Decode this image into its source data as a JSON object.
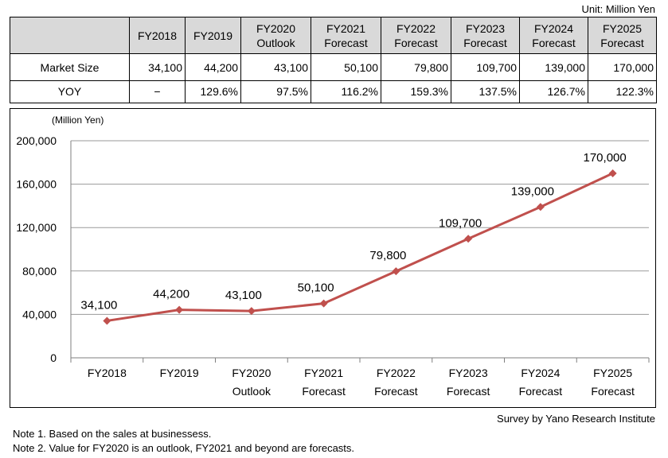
{
  "unit_label": "Unit: Million Yen",
  "table": {
    "header": [
      "",
      "FY2018",
      "FY2019",
      "FY2020\nOutlook",
      "FY2021\nForecast",
      "FY2022\nForecast",
      "FY2023\nForecast",
      "FY2024\nForecast",
      "FY2025\nForecast"
    ],
    "rows": [
      {
        "label": "Market Size",
        "cells": [
          "34,100",
          "44,200",
          "43,100",
          "50,100",
          "79,800",
          "109,700",
          "139,000",
          "170,000"
        ]
      },
      {
        "label": "YOY",
        "cells": [
          "−",
          "129.6%",
          "97.5%",
          "116.2%",
          "159.3%",
          "137.5%",
          "126.7%",
          "122.3%"
        ]
      }
    ]
  },
  "chart_data": {
    "type": "line",
    "categories": [
      [
        "FY2018"
      ],
      [
        "FY2019"
      ],
      [
        "FY2020",
        "Outlook"
      ],
      [
        "FY2021",
        "Forecast"
      ],
      [
        "FY2022",
        "Forecast"
      ],
      [
        "FY2023",
        "Forecast"
      ],
      [
        "FY2024",
        "Forecast"
      ],
      [
        "FY2025",
        "Forecast"
      ]
    ],
    "values": [
      34100,
      44200,
      43100,
      50100,
      79800,
      109700,
      139000,
      170000
    ],
    "data_labels": [
      "34,100",
      "44,200",
      "43,100",
      "50,100",
      "79,800",
      "109,700",
      "139,000",
      "170,000"
    ],
    "ylabel": "(Million Yen)",
    "ylim": [
      0,
      200000
    ],
    "yticks": [
      0,
      40000,
      80000,
      120000,
      160000,
      200000
    ],
    "ytick_labels": [
      "0",
      "40,000",
      "80,000",
      "120,000",
      "160,000",
      "200,000"
    ],
    "line_color": "#c0504d",
    "grid": true
  },
  "survey_label": "Survey by Yano Research Institute",
  "notes": [
    "Note 1.  Based on the sales at businessess.",
    "Note 2.  Value for FY2020 is an outlook, FY2021 and beyond are forecasts."
  ]
}
